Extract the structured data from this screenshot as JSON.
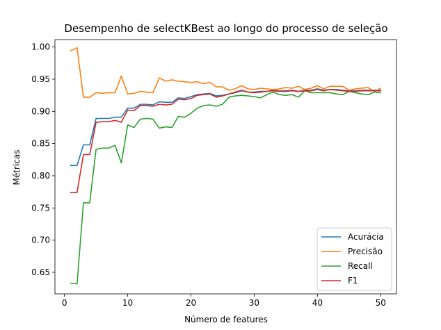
{
  "chart_data": {
    "type": "line",
    "title": "Desempenho de selectKBest ao longo do processo de seleção",
    "xlabel": "Número de features",
    "ylabel": "Métricas",
    "xlim": [
      -1.5,
      52.5
    ],
    "ylim": [
      0.6165,
      1.0115
    ],
    "xticks": [
      0,
      10,
      20,
      30,
      40,
      50
    ],
    "yticks": [
      0.65,
      0.7,
      0.75,
      0.8,
      0.85,
      0.9,
      0.95,
      1.0
    ],
    "ytick_labels": [
      "0.65",
      "0.70",
      "0.75",
      "0.80",
      "0.85",
      "0.90",
      "0.95",
      "1.00"
    ],
    "grid": false,
    "legend_position": "lower right",
    "x": [
      1,
      2,
      3,
      4,
      5,
      6,
      7,
      8,
      9,
      10,
      11,
      12,
      13,
      14,
      15,
      16,
      17,
      18,
      19,
      20,
      21,
      22,
      23,
      24,
      25,
      26,
      27,
      28,
      29,
      30,
      31,
      32,
      33,
      34,
      35,
      36,
      37,
      38,
      39,
      40,
      41,
      42,
      43,
      44,
      45,
      46,
      47,
      48,
      49,
      50
    ],
    "series": [
      {
        "name": "Acurácia",
        "color": "#1f77b4",
        "values": [
          0.816,
          0.816,
          0.848,
          0.848,
          0.889,
          0.889,
          0.889,
          0.891,
          0.891,
          0.905,
          0.905,
          0.911,
          0.911,
          0.91,
          0.915,
          0.914,
          0.914,
          0.921,
          0.92,
          0.923,
          0.926,
          0.927,
          0.928,
          0.924,
          0.925,
          0.927,
          0.929,
          0.932,
          0.93,
          0.93,
          0.931,
          0.931,
          0.933,
          0.932,
          0.932,
          0.933,
          0.931,
          0.933,
          0.933,
          0.935,
          0.933,
          0.934,
          0.934,
          0.933,
          0.932,
          0.932,
          0.933,
          0.933,
          0.933,
          0.933
        ]
      },
      {
        "name": "Precisão",
        "color": "#ff7f0e",
        "values": [
          0.994,
          0.999,
          0.922,
          0.922,
          0.929,
          0.928,
          0.929,
          0.929,
          0.955,
          0.927,
          0.928,
          0.931,
          0.93,
          0.929,
          0.952,
          0.947,
          0.949,
          0.947,
          0.946,
          0.945,
          0.946,
          0.943,
          0.945,
          0.938,
          0.938,
          0.933,
          0.935,
          0.94,
          0.935,
          0.934,
          0.936,
          0.935,
          0.934,
          0.935,
          0.937,
          0.936,
          0.939,
          0.934,
          0.936,
          0.94,
          0.935,
          0.939,
          0.939,
          0.939,
          0.933,
          0.935,
          0.936,
          0.937,
          0.931,
          0.936
        ]
      },
      {
        "name": "Recall",
        "color": "#2ca02c",
        "values": [
          0.633,
          0.632,
          0.758,
          0.758,
          0.841,
          0.843,
          0.843,
          0.847,
          0.82,
          0.879,
          0.875,
          0.888,
          0.889,
          0.888,
          0.874,
          0.876,
          0.875,
          0.892,
          0.891,
          0.897,
          0.905,
          0.909,
          0.91,
          0.908,
          0.911,
          0.922,
          0.924,
          0.925,
          0.924,
          0.923,
          0.921,
          0.926,
          0.93,
          0.926,
          0.925,
          0.926,
          0.922,
          0.932,
          0.929,
          0.929,
          0.929,
          0.929,
          0.927,
          0.926,
          0.931,
          0.929,
          0.927,
          0.926,
          0.93,
          0.929
        ]
      },
      {
        "name": "F1",
        "color": "#d62728",
        "values": [
          0.774,
          0.774,
          0.833,
          0.833,
          0.883,
          0.884,
          0.884,
          0.886,
          0.883,
          0.902,
          0.901,
          0.909,
          0.909,
          0.908,
          0.911,
          0.91,
          0.911,
          0.919,
          0.918,
          0.92,
          0.925,
          0.926,
          0.927,
          0.922,
          0.924,
          0.927,
          0.93,
          0.933,
          0.93,
          0.929,
          0.93,
          0.931,
          0.932,
          0.931,
          0.931,
          0.932,
          0.931,
          0.932,
          0.932,
          0.934,
          0.932,
          0.934,
          0.933,
          0.932,
          0.931,
          0.931,
          0.932,
          0.932,
          0.932,
          0.932
        ]
      }
    ]
  }
}
